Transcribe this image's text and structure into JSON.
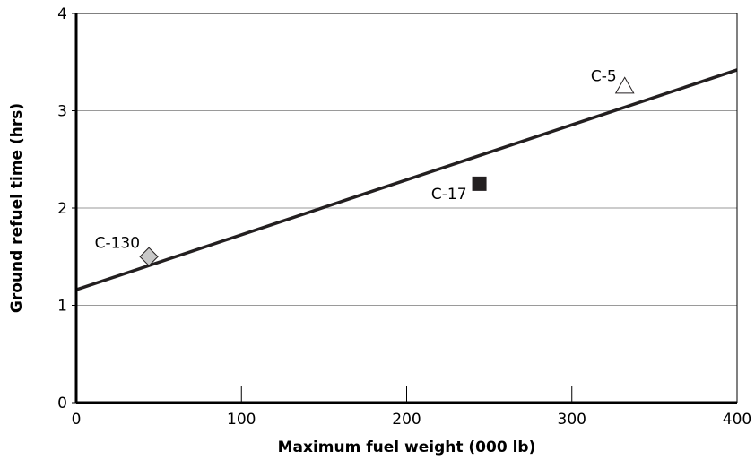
{
  "chart_data": {
    "type": "scatter",
    "xlabel": "Maximum fuel weight (000 lb)",
    "ylabel": "Ground refuel time (hrs)",
    "xlim": [
      0,
      400
    ],
    "ylim": [
      0,
      4
    ],
    "x_ticks": [
      "0",
      "100",
      "200",
      "300",
      "400"
    ],
    "y_ticks": [
      "0",
      "1",
      "2",
      "3",
      "4"
    ],
    "grid": "horizontal",
    "points": [
      {
        "label": "C-130",
        "x": 44,
        "y": 1.5,
        "marker": "diamond",
        "color": "#c8c8c8"
      },
      {
        "label": "C-17",
        "x": 244,
        "y": 2.25,
        "marker": "square",
        "color": "#231f20"
      },
      {
        "label": "C-5",
        "x": 332,
        "y": 3.25,
        "marker": "triangle",
        "color": "#ffffff"
      }
    ],
    "trend_line": {
      "x": [
        0,
        400
      ],
      "y": [
        1.16,
        3.42
      ]
    }
  }
}
